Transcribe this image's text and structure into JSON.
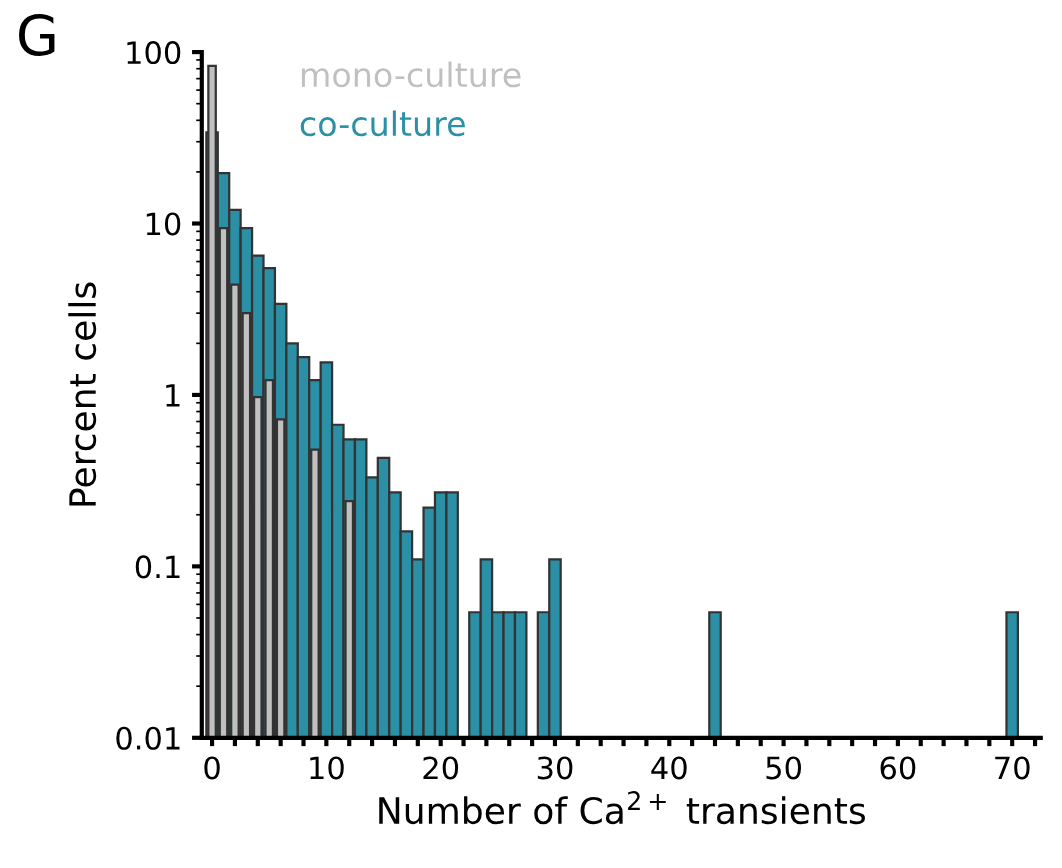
{
  "chart_data": {
    "type": "bar",
    "xlabel": "Number of Ca$^{2+}$ transients",
    "ylabel": "Percent cells",
    "annotations": [
      "G"
    ],
    "x": [
      0,
      1,
      2,
      3,
      4,
      5,
      6,
      7,
      8,
      9,
      10,
      11,
      12,
      13,
      14,
      15,
      16,
      17,
      18,
      19,
      20,
      21,
      22,
      23,
      24,
      25,
      26,
      27,
      28,
      29,
      30,
      31,
      32,
      33,
      34,
      35,
      36,
      37,
      38,
      39,
      40,
      41,
      42,
      43,
      44,
      45,
      46,
      47,
      48,
      49,
      50,
      51,
      52,
      53,
      54,
      55,
      56,
      57,
      58,
      59,
      60,
      61,
      62,
      63,
      64,
      65,
      66,
      67,
      68,
      69,
      70
    ],
    "series": [
      {
        "name": "co-culture",
        "color": "#2b8fa5",
        "values": [
          34,
          19.7,
          12,
          9.4,
          6.5,
          5.5,
          3.4,
          2.0,
          1.66,
          1.22,
          1.55,
          0.67,
          0.55,
          0.55,
          0.33,
          0.43,
          0.27,
          0.16,
          0.11,
          0.22,
          0.27,
          0.27,
          null,
          0.054,
          0.11,
          0.054,
          0.054,
          0.054,
          null,
          0.054,
          0.11,
          null,
          null,
          null,
          null,
          null,
          null,
          null,
          null,
          null,
          null,
          null,
          null,
          null,
          0.054,
          null,
          null,
          null,
          null,
          null,
          null,
          null,
          null,
          null,
          null,
          null,
          null,
          null,
          null,
          null,
          null,
          null,
          null,
          null,
          null,
          null,
          null,
          null,
          null,
          null,
          0.054
        ]
      },
      {
        "name": "mono-culture",
        "color": "#c0c0c0",
        "values": [
          83,
          9.4,
          4.4,
          3.0,
          0.97,
          1.22,
          0.72,
          null,
          null,
          0.48,
          null,
          null,
          0.24,
          null,
          null,
          null,
          null,
          null,
          null,
          null,
          null,
          null,
          null,
          null,
          null,
          null,
          null,
          null,
          null,
          null,
          null,
          null,
          null,
          null,
          null,
          null,
          null,
          null,
          null,
          null,
          null,
          null,
          null,
          null,
          null,
          null,
          null,
          null,
          null,
          null,
          null,
          null,
          null,
          null,
          null,
          null,
          null,
          null,
          null,
          null,
          null,
          null,
          null,
          null,
          null,
          null,
          null,
          null,
          null,
          null,
          null
        ]
      }
    ],
    "log": true,
    "ylim": [
      0.01,
      100
    ],
    "yticks": [
      0.01,
      0.1,
      1,
      10,
      100
    ],
    "xlim": [
      -0.9,
      72.5
    ],
    "xticks": [
      0,
      {
        "value": 2,
        "label": null
      },
      {
        "value": 4,
        "label": null
      },
      {
        "value": 6,
        "label": null
      },
      {
        "value": 8,
        "label": null
      },
      10,
      {
        "value": 12,
        "label": null
      },
      {
        "value": 14,
        "label": null
      },
      {
        "value": 16,
        "label": null
      },
      {
        "value": 18,
        "label": null
      },
      20,
      {
        "value": 22,
        "label": null
      },
      {
        "value": 24,
        "label": null
      },
      {
        "value": 26,
        "label": null
      },
      {
        "value": 28,
        "label": null
      },
      30,
      {
        "value": 32,
        "label": null
      },
      {
        "value": 34,
        "label": null
      },
      {
        "value": 36,
        "label": null
      },
      {
        "value": 38,
        "label": null
      },
      40,
      {
        "value": 42,
        "label": null
      },
      {
        "value": 44,
        "label": null
      },
      {
        "value": 46,
        "label": null
      },
      {
        "value": 48,
        "label": null
      },
      50,
      {
        "value": 52,
        "label": null
      },
      {
        "value": 54,
        "label": null
      },
      {
        "value": 56,
        "label": null
      },
      {
        "value": 58,
        "label": null
      },
      60,
      {
        "value": 62,
        "label": null
      },
      {
        "value": 64,
        "label": null
      },
      {
        "value": 66,
        "label": null
      },
      {
        "value": 68,
        "label": null
      },
      70,
      {
        "value": 72,
        "label": null
      }
    ],
    "legend": "top left",
    "grid": false
  }
}
